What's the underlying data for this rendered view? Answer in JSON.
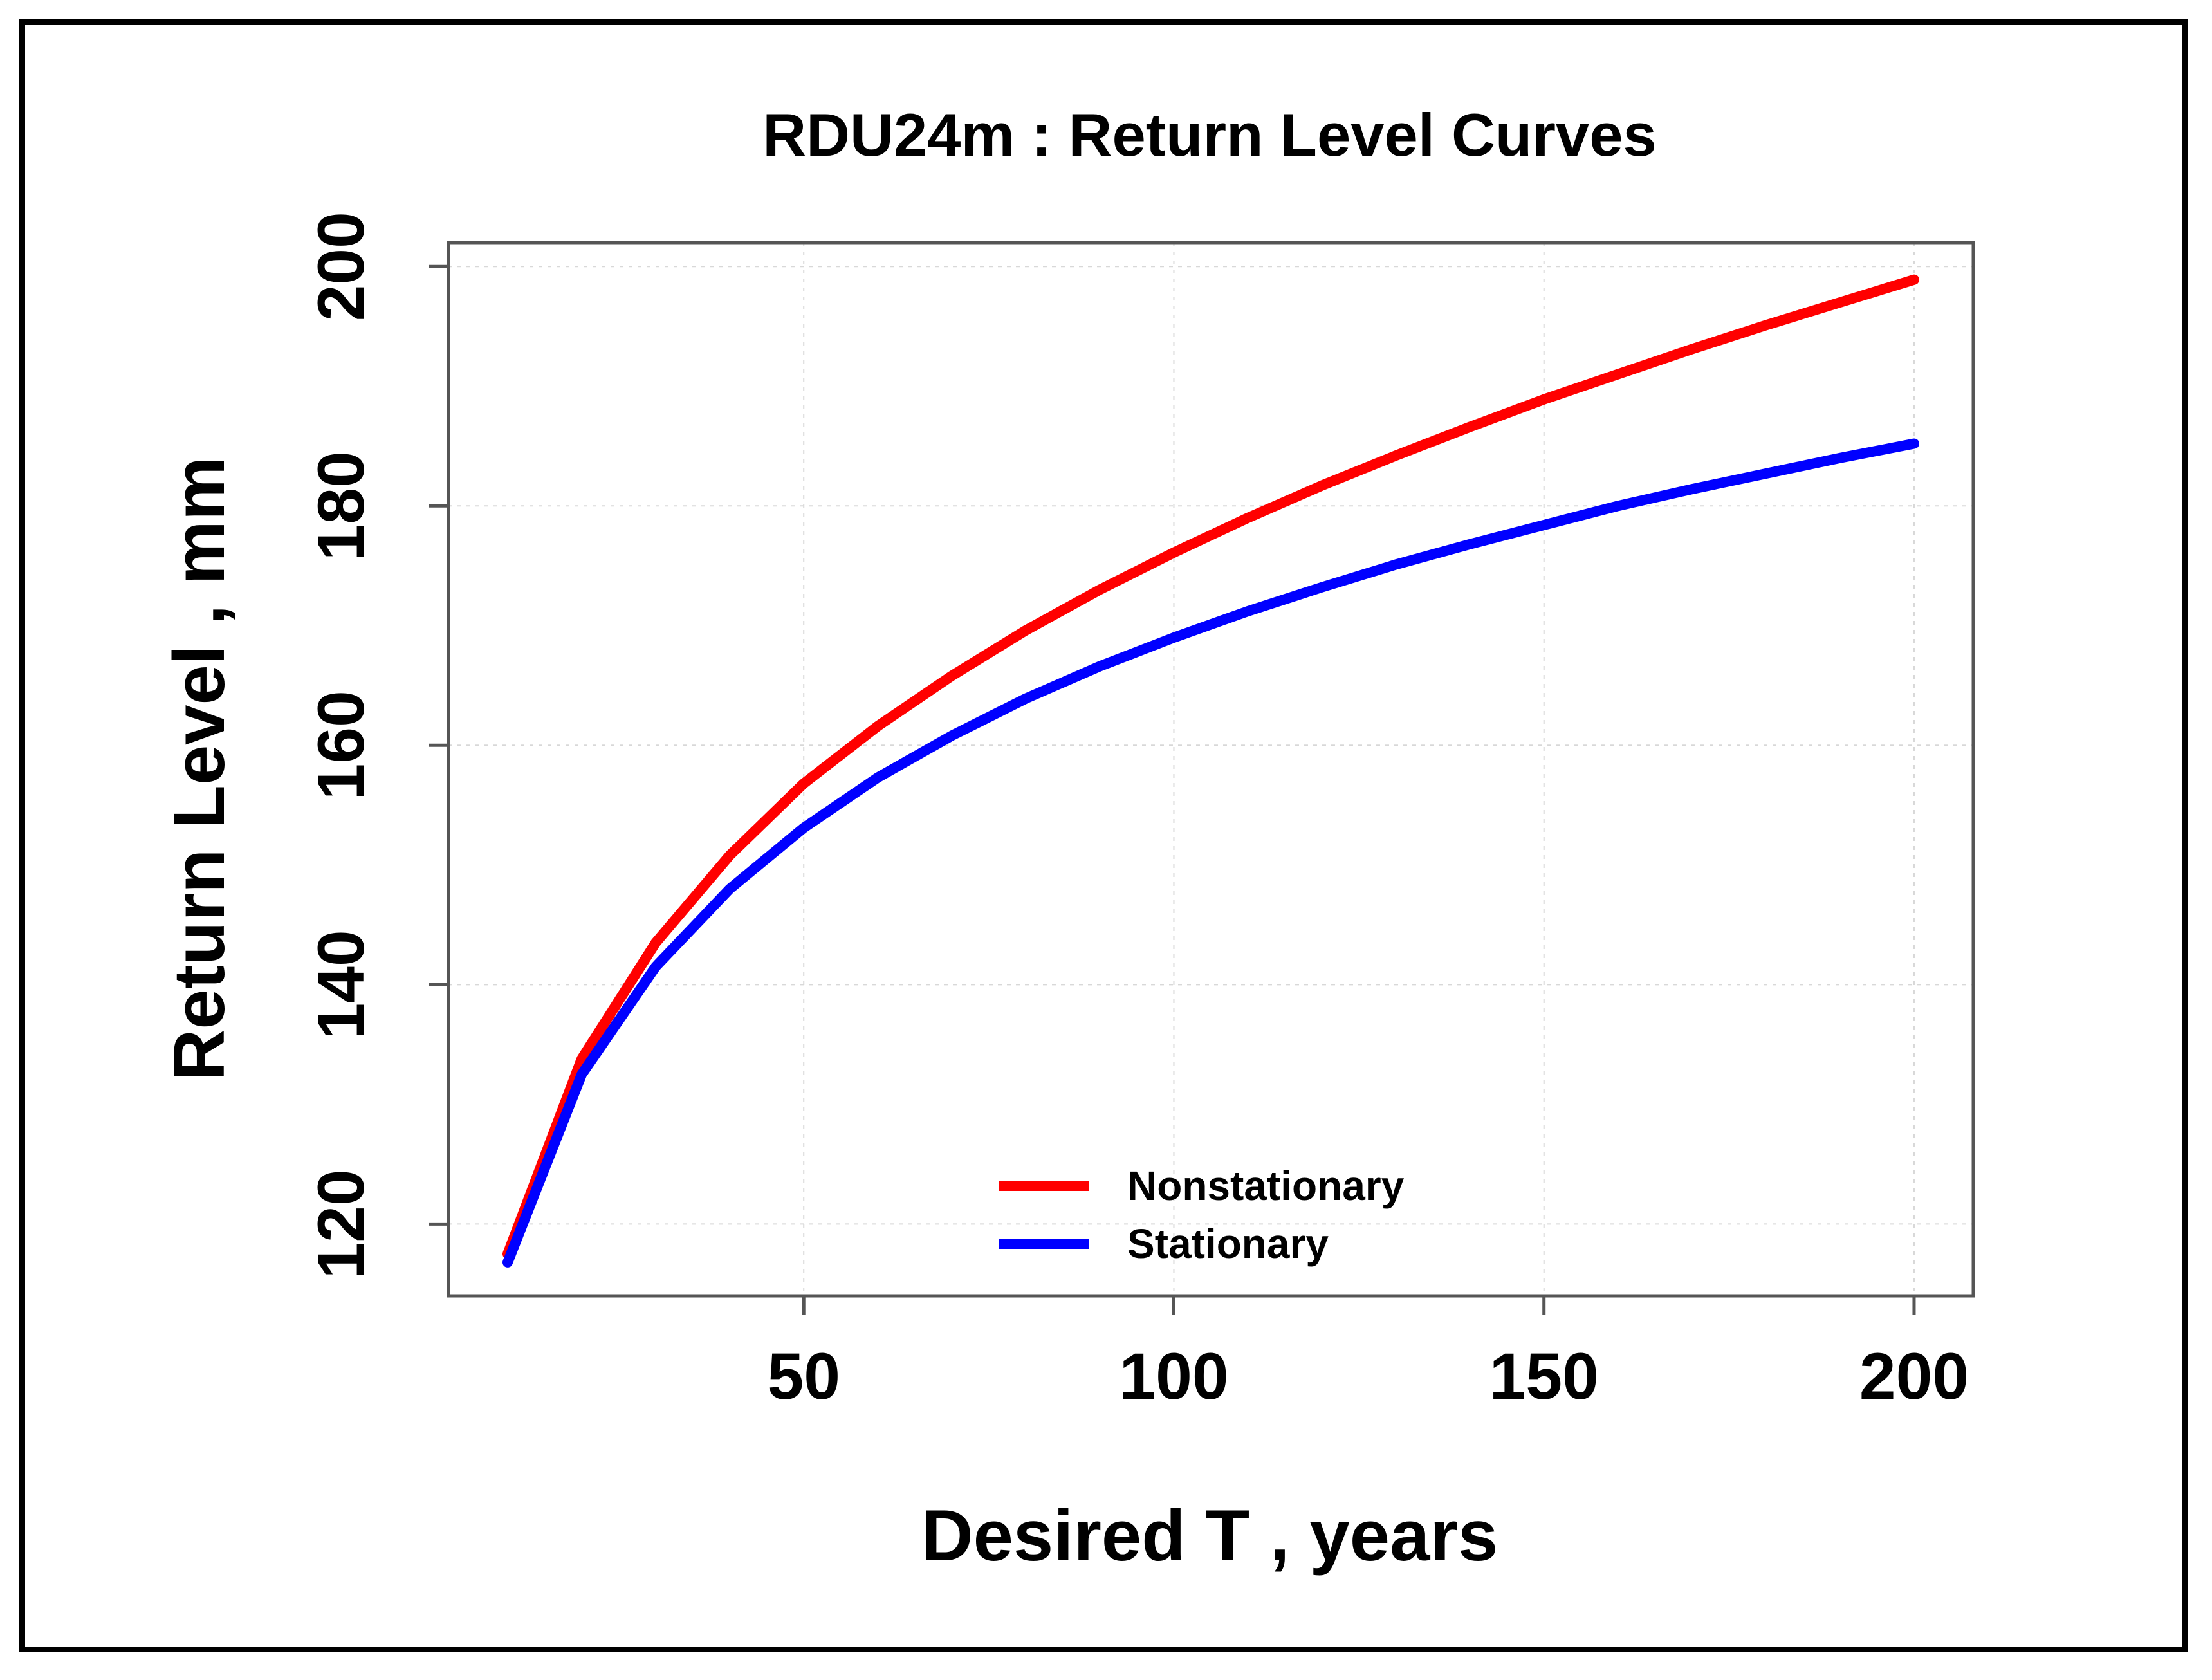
{
  "chart_data": {
    "type": "line",
    "title": "RDU24m : Return Level Curves",
    "xlabel": "Desired T , years",
    "ylabel": "Return Level , mm",
    "xlim": [
      2,
      208
    ],
    "ylim": [
      114,
      202
    ],
    "xticks": [
      50,
      100,
      150,
      200
    ],
    "yticks": [
      120,
      140,
      160,
      180,
      200
    ],
    "grid": true,
    "legend_position": "bottom-center",
    "series": [
      {
        "name": "Nonstationary",
        "color": "#ff0000",
        "x": [
          10,
          20,
          30,
          40,
          50,
          60,
          70,
          80,
          90,
          100,
          110,
          120,
          130,
          140,
          150,
          160,
          170,
          180,
          190,
          200
        ],
        "y": [
          117.5,
          133.8,
          143.5,
          150.8,
          156.8,
          161.6,
          165.8,
          169.6,
          173.0,
          176.1,
          179.0,
          181.7,
          184.2,
          186.6,
          188.9,
          191.0,
          193.1,
          195.1,
          197.0,
          198.9
        ]
      },
      {
        "name": "Stationary",
        "color": "#0000ff",
        "x": [
          10,
          20,
          30,
          40,
          50,
          60,
          70,
          80,
          90,
          100,
          110,
          120,
          130,
          140,
          150,
          160,
          170,
          180,
          190,
          200
        ],
        "y": [
          116.8,
          132.5,
          141.5,
          148.0,
          153.1,
          157.3,
          160.8,
          163.9,
          166.6,
          169.0,
          171.2,
          173.2,
          175.1,
          176.8,
          178.4,
          180.0,
          181.4,
          182.7,
          184.0,
          185.2
        ]
      }
    ]
  }
}
